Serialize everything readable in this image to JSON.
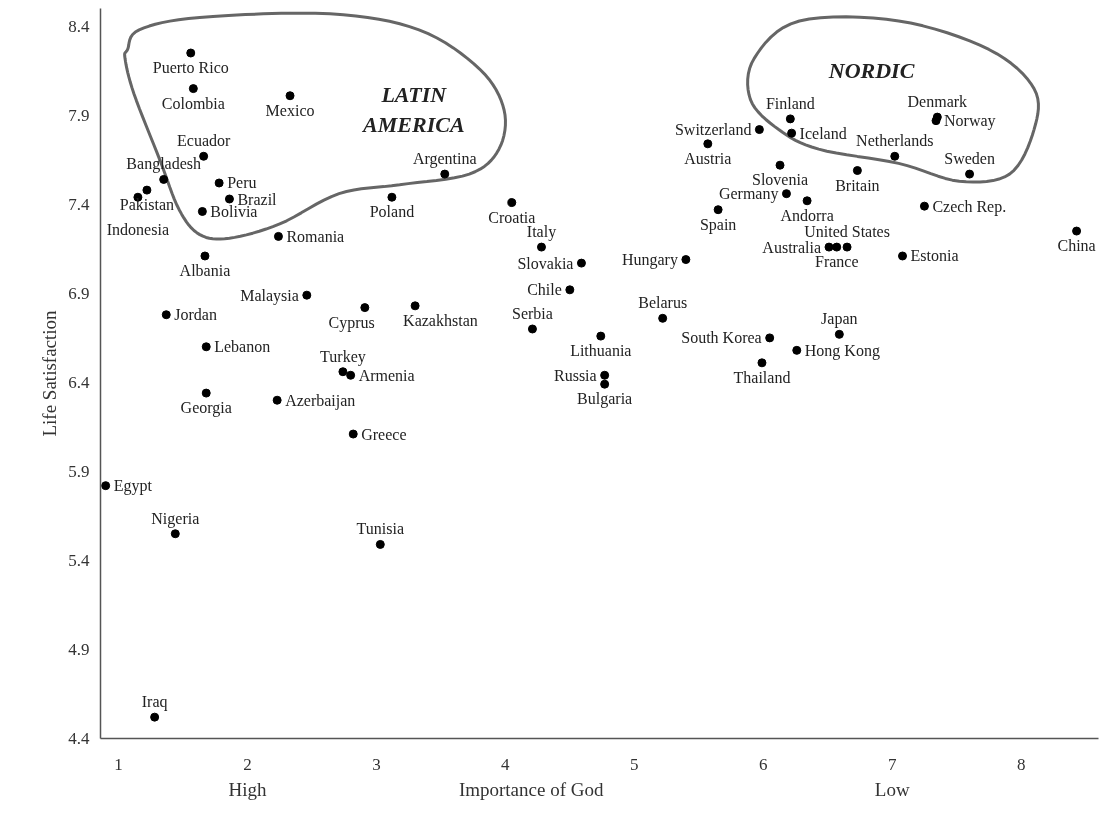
{
  "chart_data": {
    "type": "scatter",
    "xlabel": "Importance of God",
    "ylabel": "Life Satisfaction",
    "annotations": [
      "LATIN AMERICA",
      "NORDIC",
      "High",
      "Low"
    ],
    "x": [
      1.56,
      1.58,
      2.33,
      1.66,
      1.78,
      1.86,
      1.65,
      1.35,
      1.22,
      1.15,
      2.24,
      1.67,
      3.53,
      3.12,
      2.46,
      1.37,
      1.68,
      2.91,
      3.3,
      2.74,
      2.8,
      1.68,
      2.23,
      2.82,
      0.9,
      1.44,
      3.03,
      1.28,
      4.21,
      4.5,
      4.74,
      4.77,
      4.77,
      5.22,
      6.05,
      5.99,
      6.26,
      6.59,
      4.05,
      4.28,
      4.59,
      5.4,
      5.97,
      5.57,
      6.21,
      6.22,
      7.35,
      7.34,
      7.02,
      7.6,
      6.13,
      6.73,
      6.18,
      6.34,
      5.65,
      7.25,
      6.51,
      6.57,
      6.65,
      7.08,
      8.43
    ],
    "values": [
      8.25,
      8.05,
      8.01,
      7.67,
      7.52,
      7.43,
      7.36,
      7.54,
      7.48,
      7.44,
      7.22,
      7.11,
      7.57,
      7.44,
      6.89,
      6.78,
      6.6,
      6.82,
      6.83,
      6.46,
      6.44,
      6.34,
      6.3,
      6.11,
      5.82,
      5.55,
      5.49,
      4.52,
      6.7,
      6.92,
      6.66,
      6.44,
      6.39,
      6.76,
      6.65,
      6.51,
      6.58,
      6.67,
      7.41,
      7.16,
      7.07,
      7.09,
      7.82,
      7.74,
      7.88,
      7.8,
      7.89,
      7.87,
      7.67,
      7.57,
      7.62,
      7.59,
      7.46,
      7.42,
      7.37,
      7.39,
      7.16,
      7.16,
      7.16,
      7.11,
      7.25
    ],
    "value_labels": [
      "Puerto Rico",
      "Colombia",
      "Mexico",
      "Ecuador",
      "Peru",
      "Brazil",
      "Bolivia",
      "Bangladesh",
      "Pakistan",
      "Indonesia",
      "Romania",
      "Albania",
      "Argentina",
      "Poland",
      "Malaysia",
      "Jordan",
      "Lebanon",
      "Cyprus",
      "Kazakhstan",
      "Turkey",
      "Armenia",
      "Georgia",
      "Azerbaijan",
      "Greece",
      "Egypt",
      "Nigeria",
      "Tunisia",
      "Iraq",
      "Serbia",
      "Chile",
      "Lithuania",
      "Russia",
      "Bulgaria",
      "Belarus",
      "South Korea",
      "Thailand",
      "Hong Kong",
      "Japan",
      "Croatia",
      "Italy",
      "Slovakia",
      "Hungary",
      "Switzerland",
      "Austria",
      "Finland",
      "Iceland",
      "Denmark",
      "Norway",
      "Netherlands",
      "Sweden",
      "Slovenia",
      "Britain",
      "Germany",
      "Andorra",
      "Spain",
      "Czech Rep.",
      "Australia",
      "France",
      "United States",
      "Estonia",
      "China"
    ],
    "color": "#000000",
    "marker": "circle",
    "xlim": [
      0.86,
      8.6
    ],
    "ylim": [
      4.4,
      8.5
    ],
    "xticks": [
      1,
      2,
      3,
      4,
      5,
      6,
      7,
      8
    ],
    "yticks": [
      4.4,
      4.9,
      5.4,
      5.9,
      6.4,
      6.9,
      7.4,
      7.9,
      8.4
    ],
    "grid": false,
    "legend": false
  }
}
